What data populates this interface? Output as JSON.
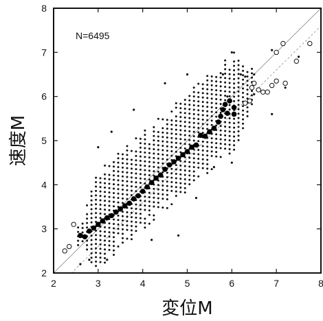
{
  "chart_data": {
    "type": "scatter",
    "title": "",
    "xlabel": "変位M",
    "ylabel": "速度M",
    "xlim": [
      2,
      8
    ],
    "ylim": [
      2,
      8
    ],
    "x_ticks": [
      "2",
      "3",
      "4",
      "5",
      "6",
      "7",
      "8"
    ],
    "y_ticks": [
      "2",
      "3",
      "4",
      "5",
      "6",
      "7",
      "8"
    ],
    "grid": false,
    "annotation": "N=6495",
    "reference_lines": [
      {
        "style": "solid",
        "points": [
          [
            2.0,
            2.0
          ],
          [
            8.0,
            8.0
          ]
        ]
      },
      {
        "style": "dashed",
        "points": [
          [
            2.0,
            1.6
          ],
          [
            8.0,
            7.6
          ]
        ]
      }
    ],
    "series": [
      {
        "marker": "filled-circle-large",
        "points": [
          [
            2.6,
            2.85
          ],
          [
            2.7,
            2.82
          ],
          [
            2.8,
            2.95
          ],
          [
            2.9,
            3.02
          ],
          [
            3.0,
            3.1
          ],
          [
            3.1,
            3.18
          ],
          [
            3.2,
            3.25
          ],
          [
            3.3,
            3.3
          ],
          [
            3.4,
            3.38
          ],
          [
            3.5,
            3.45
          ],
          [
            3.6,
            3.52
          ],
          [
            3.7,
            3.58
          ],
          [
            3.8,
            3.68
          ],
          [
            3.9,
            3.75
          ],
          [
            4.0,
            3.85
          ],
          [
            4.1,
            3.95
          ],
          [
            4.2,
            4.05
          ],
          [
            4.3,
            4.15
          ],
          [
            4.4,
            4.22
          ],
          [
            4.5,
            4.35
          ],
          [
            4.6,
            4.45
          ],
          [
            4.7,
            4.52
          ],
          [
            4.8,
            4.6
          ],
          [
            4.9,
            4.68
          ],
          [
            5.0,
            4.75
          ],
          [
            5.1,
            4.85
          ],
          [
            5.2,
            4.9
          ],
          [
            5.3,
            5.12
          ],
          [
            5.4,
            5.1
          ],
          [
            5.5,
            5.2
          ],
          [
            5.6,
            5.28
          ],
          [
            5.7,
            5.42
          ],
          [
            5.75,
            5.55
          ],
          [
            5.8,
            5.7
          ],
          [
            5.85,
            5.82
          ],
          [
            5.95,
            5.9
          ],
          [
            6.05,
            5.75
          ],
          [
            5.9,
            5.62
          ],
          [
            6.05,
            5.6
          ]
        ]
      },
      {
        "marker": "open-circle",
        "points": [
          [
            2.25,
            2.5
          ],
          [
            2.35,
            2.6
          ],
          [
            2.45,
            3.1
          ],
          [
            6.3,
            5.85
          ],
          [
            6.4,
            5.9
          ],
          [
            6.45,
            6.2
          ],
          [
            6.5,
            6.3
          ],
          [
            6.6,
            6.15
          ],
          [
            6.7,
            6.1
          ],
          [
            6.8,
            6.1
          ],
          [
            6.9,
            6.25
          ],
          [
            7.0,
            6.35
          ],
          [
            7.0,
            7.0
          ],
          [
            7.15,
            7.2
          ],
          [
            7.2,
            6.3
          ],
          [
            7.45,
            6.8
          ],
          [
            7.75,
            7.2
          ]
        ]
      },
      {
        "marker": "small-dot",
        "band": {
          "x_range": [
            2.55,
            6.5
          ],
          "x_step": 0.1,
          "center_line": [
            [
              2.6,
              2.85
            ],
            [
              6.0,
              5.85
            ]
          ],
          "half_width": 1.1,
          "y_step": 0.1
        },
        "outliers": [
          [
            2.6,
            2.2
          ],
          [
            2.8,
            2.3
          ],
          [
            3.2,
            2.3
          ],
          [
            4.2,
            2.75
          ],
          [
            4.8,
            2.85
          ],
          [
            5.2,
            3.7
          ],
          [
            5.6,
            4.4
          ],
          [
            6.0,
            4.5
          ],
          [
            6.9,
            5.6
          ],
          [
            6.9,
            7.05
          ],
          [
            6.5,
            6.05
          ],
          [
            7.2,
            6.2
          ],
          [
            6.5,
            6.5
          ],
          [
            6.3,
            6.45
          ],
          [
            5.9,
            6.0
          ],
          [
            3.3,
            5.2
          ],
          [
            3.0,
            4.85
          ],
          [
            3.8,
            5.7
          ],
          [
            4.5,
            6.3
          ],
          [
            5.0,
            6.5
          ],
          [
            6.0,
            7.0
          ],
          [
            6.2,
            6.5
          ],
          [
            5.8,
            6.5
          ],
          [
            7.5,
            6.9
          ]
        ]
      }
    ]
  }
}
